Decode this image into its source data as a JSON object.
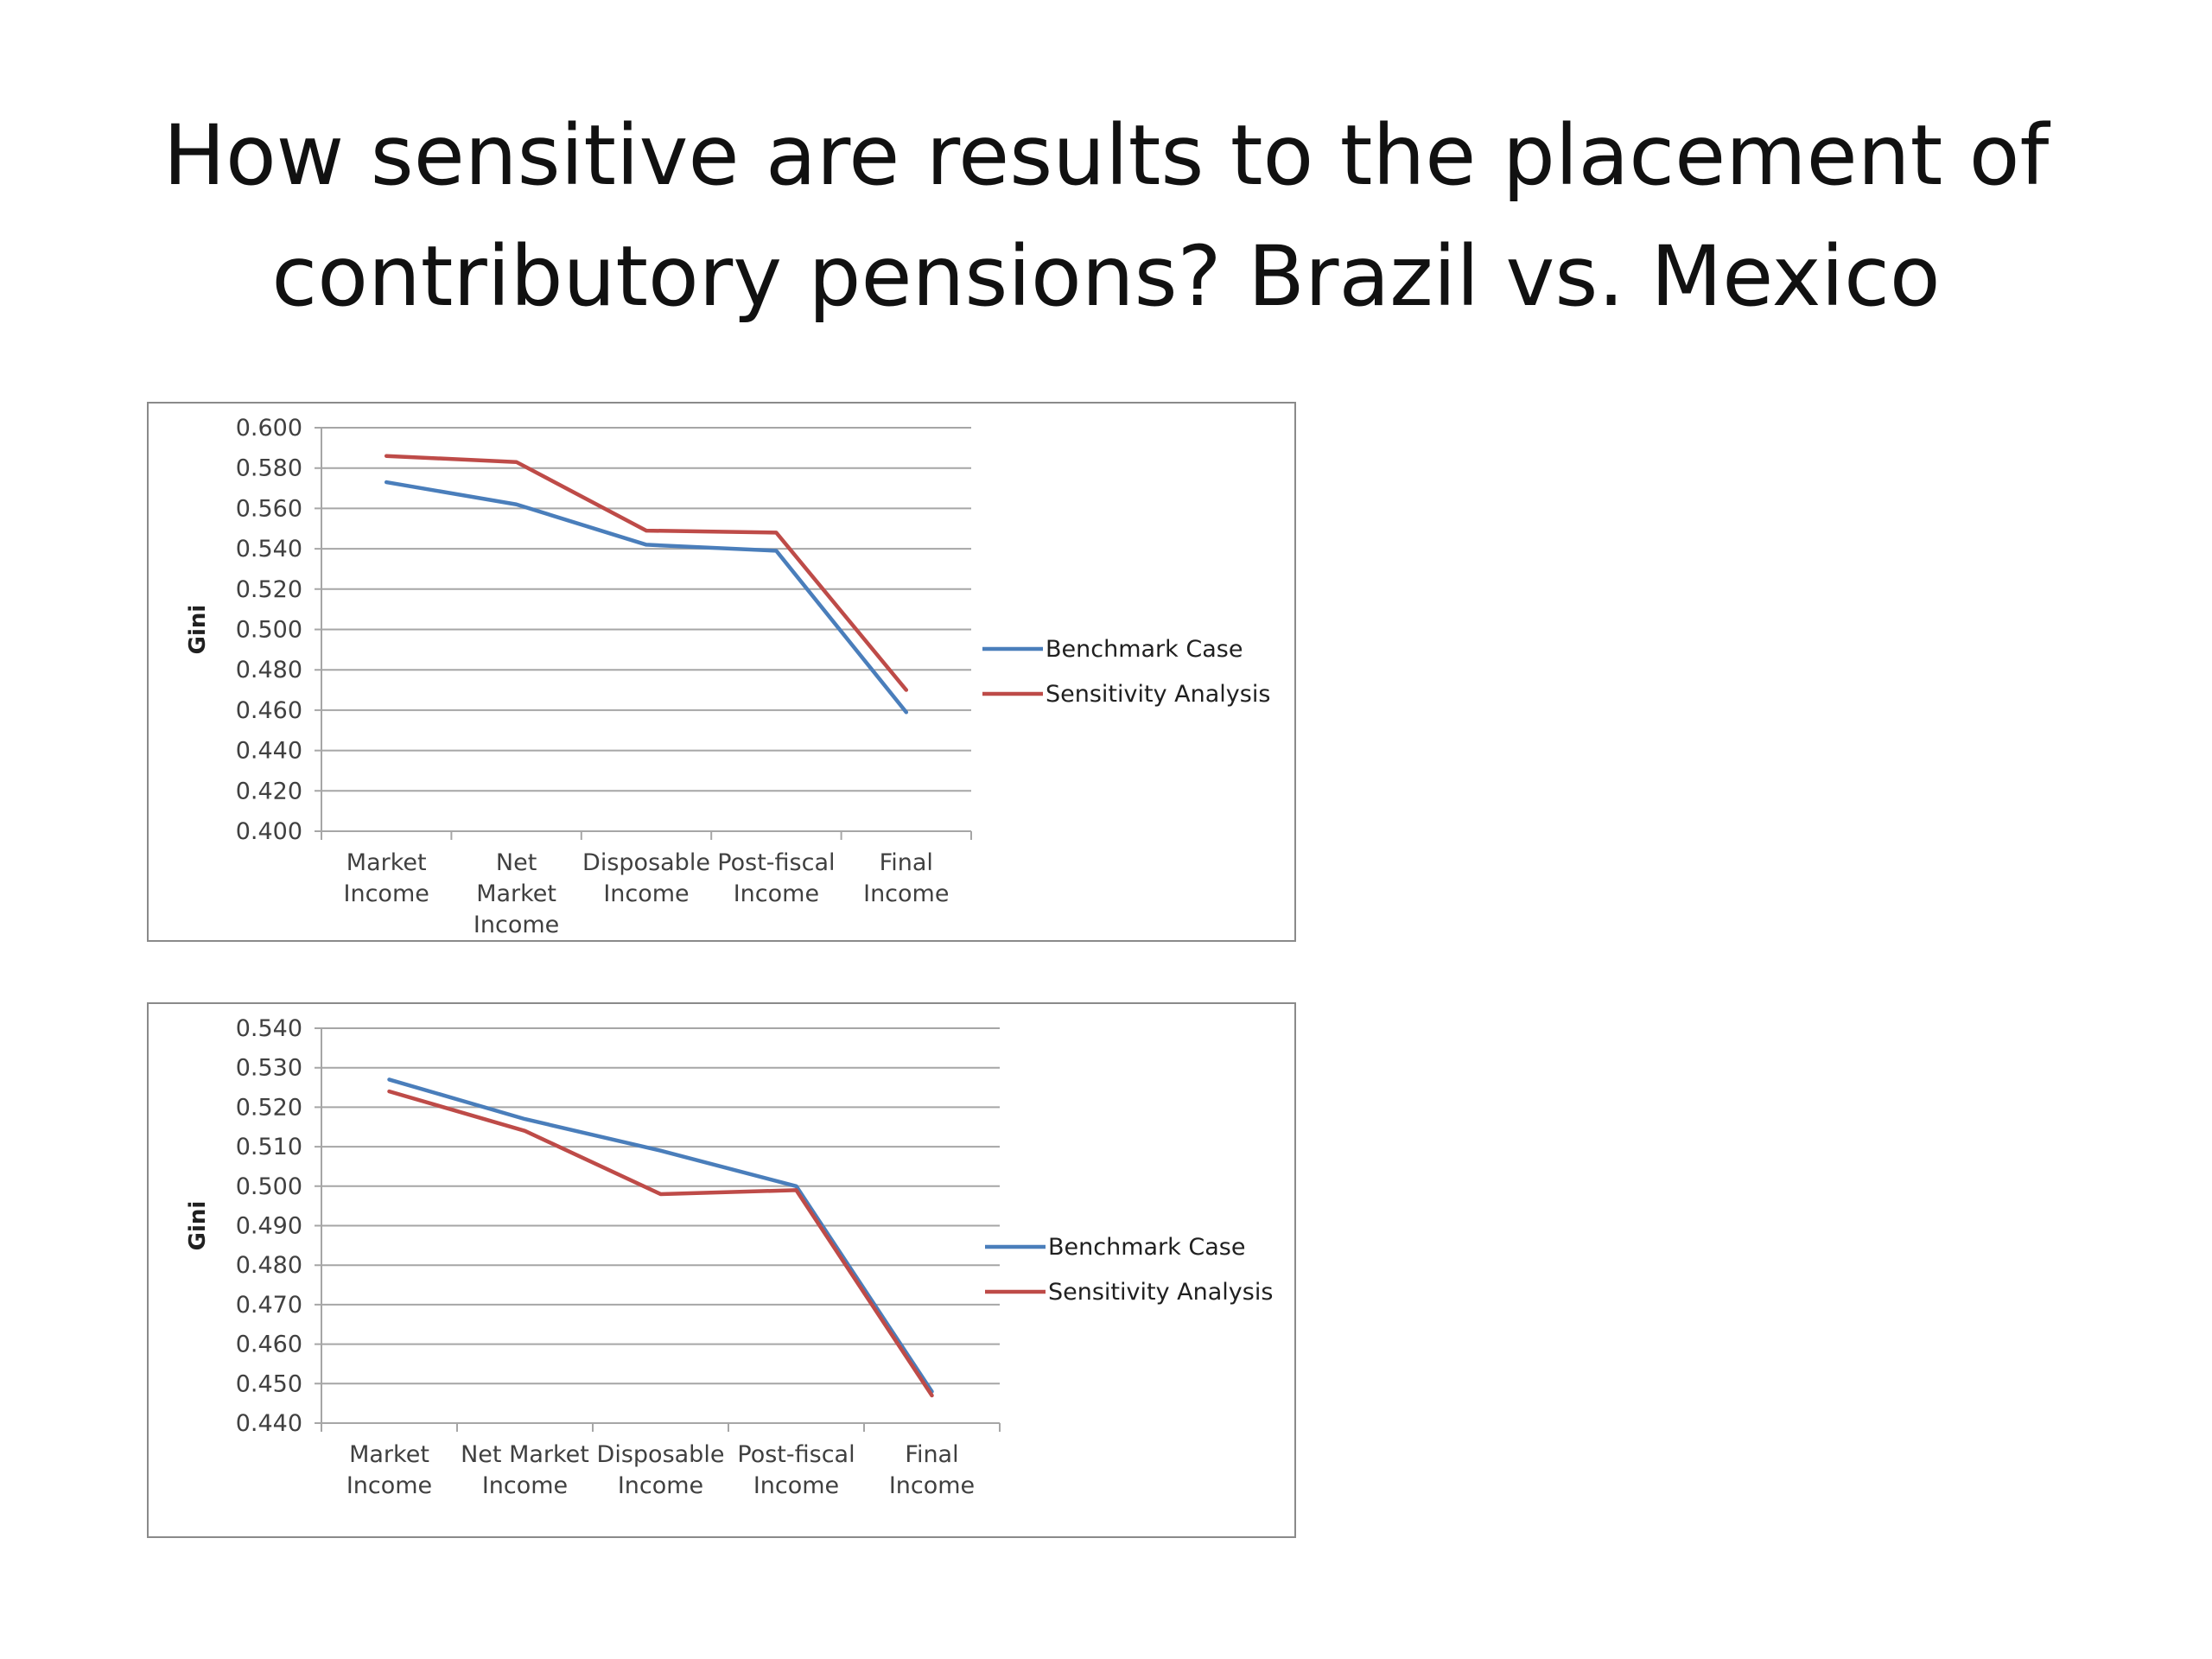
{
  "slide": {
    "title_line1": "How sensitive are results to the placement of",
    "title_line2": "contributory pensions? Brazil vs. Mexico"
  },
  "colors": {
    "benchmark": "#4a7ebb",
    "sensitivity": "#be4b48",
    "gridline": "#a6a6a6",
    "axis_text": "#404040"
  },
  "chart_data": [
    {
      "type": "line",
      "ylabel": "Gini",
      "xlabel": "",
      "ylim": [
        0.4,
        0.6
      ],
      "ytick_step": 0.02,
      "ytick_labels": [
        "0.600",
        "0.580",
        "0.560",
        "0.540",
        "0.520",
        "0.500",
        "0.480",
        "0.460",
        "0.440",
        "0.420",
        "0.400"
      ],
      "categories": [
        "Market Income",
        "Net Market Income",
        "Disposable Income",
        "Post-fiscal Income",
        "Final Income"
      ],
      "category_lines": [
        [
          "Market",
          "Income"
        ],
        [
          "Net",
          "Market",
          "Income"
        ],
        [
          "Disposable",
          "Income"
        ],
        [
          "Post-fiscal",
          "Income"
        ],
        [
          "Final",
          "Income"
        ]
      ],
      "grid": true,
      "legend_position": "right",
      "series": [
        {
          "name": "Benchmark Case",
          "values": [
            0.573,
            0.562,
            0.542,
            0.539,
            0.459
          ]
        },
        {
          "name": "Sensitivity Analysis",
          "values": [
            0.586,
            0.583,
            0.549,
            0.548,
            0.47
          ]
        }
      ]
    },
    {
      "type": "line",
      "ylabel": "Gini",
      "xlabel": "",
      "ylim": [
        0.44,
        0.54
      ],
      "ytick_step": 0.01,
      "ytick_labels": [
        "0.540",
        "0.530",
        "0.520",
        "0.510",
        "0.500",
        "0.490",
        "0.480",
        "0.470",
        "0.460",
        "0.450",
        "0.440"
      ],
      "categories": [
        "Market Income",
        "Net Market Income",
        "Disposable Income",
        "Post-fiscal Income",
        "Final Income"
      ],
      "category_lines": [
        [
          "Market",
          "Income"
        ],
        [
          "Net Market",
          "Income"
        ],
        [
          "Disposable",
          "Income"
        ],
        [
          "Post-fiscal",
          "Income"
        ],
        [
          "Final",
          "Income"
        ]
      ],
      "grid": true,
      "legend_position": "right",
      "series": [
        {
          "name": "Benchmark Case",
          "values": [
            0.527,
            0.517,
            0.509,
            0.5,
            0.448
          ]
        },
        {
          "name": "Sensitivity Analysis",
          "values": [
            0.524,
            0.514,
            0.498,
            0.499,
            0.447
          ]
        }
      ]
    }
  ]
}
